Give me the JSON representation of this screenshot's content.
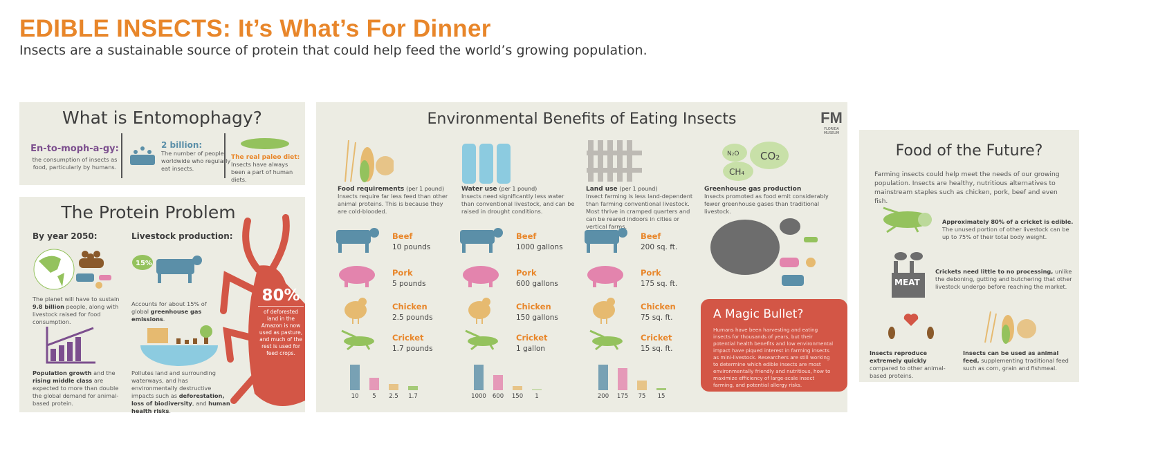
{
  "header": {
    "title": "EDIBLE INSECTS: It’s What’s For Dinner",
    "subtitle": "Insects are a sustainable source of protein that could help feed the world’s growing population."
  },
  "entomophagy": {
    "title": "What is Entomophagy?",
    "term": "En-to-moph-a-gy:",
    "definition": "the consumption of insects as food, particularly by humans.",
    "count_title": "2 billion:",
    "count_text": "The number of people worldwide who regularly eat insects.",
    "paleo_title": "The real paleo diet:",
    "paleo_text": "Insects have always been a part of human diets."
  },
  "protein": {
    "title": "The Protein Problem",
    "year_heading": "By year 2050:",
    "livestock_heading": "Livestock production:",
    "planet_text_1": "The planet will have to sustain ",
    "planet_bold": "9.8 billion",
    "planet_text_2": " people, along with livestock raised for food consumption.",
    "ghg_badge": "15%",
    "ghg_text_1": "Accounts for about 15% of global ",
    "ghg_bold": "greenhouse gas emissions",
    "growth_bold_1": "Population growth",
    "growth_text_1": " and the ",
    "growth_bold_2": "rising middle class",
    "growth_text_2": " are expected to more than double the global demand for animal-based protein.",
    "pollute_text_1": "Pollutes land and surrounding waterways, and has environmentally destructive impacts such as ",
    "pollute_bold_1": "deforestation, loss of biodiversity",
    "pollute_text_2": ", and ",
    "pollute_bold_2": "human health risks",
    "tick_stat": "80%",
    "tick_text": "of deforested land in the Amazon is now used as pasture, and much of the rest is used for feed crops."
  },
  "environment": {
    "title": "Environmental Benefits of Eating Insects",
    "logo_text": "FLORIDA MUSEUM",
    "columns": [
      {
        "title": "Food requirements",
        "qual": "(per 1 pound)",
        "text": "Insects require far less feed than other animal proteins. This is because they are cold-blooded.",
        "values": [
          "10 pounds",
          "5 pounds",
          "2.5 pounds",
          "1.7 pounds"
        ]
      },
      {
        "title": "Water use",
        "qual": "(per 1 pound)",
        "text": "Insects need significantly less water than conventional livestock, and can be raised in drought conditions.",
        "values": [
          "1000 gallons",
          "600 gallons",
          "150 gallons",
          "1 gallon"
        ]
      },
      {
        "title": "Land use",
        "qual": "(per 1 pound)",
        "text": "Insect farming is less land-dependent than farming conventional livestock. Most thrive in cramped quarters and can be reared indoors in cities or vertical farms.",
        "values": [
          "200 sq. ft.",
          "175 sq. ft.",
          "75 sq. ft.",
          "15 sq. ft."
        ]
      }
    ],
    "animals": [
      "Beef",
      "Pork",
      "Chicken",
      "Cricket"
    ],
    "ghg": {
      "title": "Greenhouse gas production",
      "text": "Insects promoted as food emit considerably fewer greenhouse gases than traditional livestock.",
      "gases": [
        "N₂O",
        "CO₂",
        "CH₄"
      ]
    },
    "magic": {
      "title": "A Magic Bullet?",
      "text": "Humans have been harvesting and eating insects for thousands of years, but their potential health benefits and low environmental impact have piqued interest in farming insects as mini-livestock. Researchers are still working to determine which edible insects are most environmentally friendly and nutritious, how to maximize efficiency of large-scale insect farming, and potential allergy risks."
    }
  },
  "chart_data": [
    {
      "type": "bar",
      "categories": [
        "Beef",
        "Pork",
        "Chicken",
        "Cricket"
      ],
      "values": [
        10,
        5,
        2.5,
        1.7
      ],
      "tick_labels": [
        "10",
        "5",
        "2.5",
        "1.7"
      ]
    },
    {
      "type": "bar",
      "categories": [
        "Beef",
        "Pork",
        "Chicken",
        "Cricket"
      ],
      "values": [
        1000,
        600,
        150,
        1
      ],
      "tick_labels": [
        "1000",
        "600",
        "150",
        "1"
      ]
    },
    {
      "type": "bar",
      "categories": [
        "Beef",
        "Pork",
        "Chicken",
        "Cricket"
      ],
      "values": [
        200,
        175,
        75,
        15
      ],
      "tick_labels": [
        "200",
        "175",
        "75",
        "15"
      ]
    }
  ],
  "colors": {
    "beef": "#5b8fa8",
    "pork": "#e384ad",
    "chicken": "#e6ba70",
    "cricket": "#94c25d",
    "accent": "#e8862a",
    "red": "#d35646",
    "panel": "#ecece3"
  },
  "future": {
    "title": "Food of the Future?",
    "intro": "Farming insects could help meet the needs of our growing population. Insects are healthy, nutritious alternatives to mainstream staples such as chicken, pork, beef and even fish.",
    "edible_bold": "Approximately 80% of a cricket is edible.",
    "edible_text": "The unused portion of other livestock can be up to 75% of their total body weight.",
    "factory_label": "MEAT",
    "processing_bold": "Crickets need little to no processing,",
    "processing_text": " unlike the deboning, gutting and butchering that other livestock undergo before reaching the market.",
    "repro_bold": "Insects reproduce extremely quickly",
    "repro_text": " compared to other animal-based proteins.",
    "feed_bold": "Insects can be used as animal feed,",
    "feed_text": " supplementing traditional feed such as corn, grain and fishmeal."
  }
}
